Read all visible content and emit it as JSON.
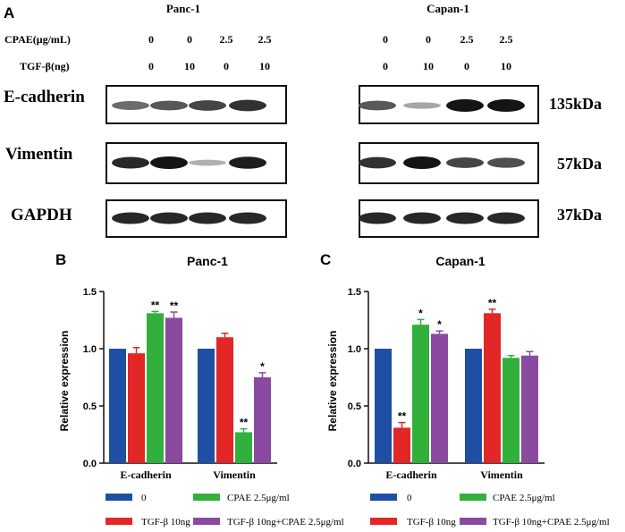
{
  "panels": {
    "A": "A",
    "B": "B",
    "C": "C"
  },
  "blot": {
    "treatment_rows": [
      {
        "label": "CPAE(μg/mL)",
        "panc": [
          "0",
          "0",
          "2.5",
          "2.5"
        ],
        "capan": [
          "0",
          "0",
          "2.5",
          "2.5"
        ]
      },
      {
        "label": "TGF-β(ng)",
        "panc": [
          "0",
          "10",
          "0",
          "10"
        ],
        "capan": [
          "0",
          "10",
          "0",
          "10"
        ]
      }
    ],
    "cell_lines": [
      "Panc-1",
      "Capan-1"
    ],
    "proteins": [
      {
        "name": "E-cadherin",
        "mw": "135kDa",
        "panc_intensity": [
          0.55,
          0.65,
          0.75,
          0.85
        ],
        "capan_intensity": [
          0.65,
          0.25,
          1.0,
          1.0
        ]
      },
      {
        "name": "Vimentin",
        "mw": "57kDa",
        "panc_intensity": [
          0.9,
          1.0,
          0.2,
          0.95
        ],
        "capan_intensity": [
          0.85,
          1.0,
          0.75,
          0.7
        ]
      },
      {
        "name": "GAPDH",
        "mw": "37kDa",
        "panc_intensity": [
          0.9,
          0.9,
          0.9,
          0.9
        ],
        "capan_intensity": [
          0.9,
          0.9,
          0.9,
          0.9
        ]
      }
    ]
  },
  "colors": {
    "s0": "#1f4fa3",
    "s1": "#e32626",
    "s2": "#32b03c",
    "s3": "#8a4aa0"
  },
  "chart_data": [
    {
      "type": "bar",
      "title": "Panc-1",
      "ylabel": "Relative expression",
      "categories": [
        "E-cadherin",
        "Vimentin"
      ],
      "ylim": [
        0,
        1.5
      ],
      "yticks": [
        "0.0",
        "0.5",
        "1.0",
        "1.5"
      ],
      "series": [
        {
          "name": "0",
          "values": [
            1.0,
            1.0
          ],
          "errors": [
            0,
            0
          ],
          "sig": [
            "",
            ""
          ]
        },
        {
          "name": "TGF-β 10ng",
          "values": [
            0.96,
            1.1
          ],
          "errors": [
            0.05,
            0.035
          ],
          "sig": [
            "",
            ""
          ]
        },
        {
          "name": "CPAE 2.5μg/ml",
          "values": [
            1.31,
            0.27
          ],
          "errors": [
            0.015,
            0.03
          ],
          "sig": [
            "**",
            "**"
          ]
        },
        {
          "name": "TGF-β 10ng+CPAE 2.5μg/ml",
          "values": [
            1.27,
            0.75
          ],
          "errors": [
            0.05,
            0.04
          ],
          "sig": [
            "**",
            "*"
          ]
        }
      ]
    },
    {
      "type": "bar",
      "title": "Capan-1",
      "ylabel": "Relative expression",
      "categories": [
        "E-cadherin",
        "Vimentin"
      ],
      "ylim": [
        0,
        1.5
      ],
      "yticks": [
        "0.0",
        "0.5",
        "1.0",
        "1.5"
      ],
      "series": [
        {
          "name": "0",
          "values": [
            1.0,
            1.0
          ],
          "errors": [
            0,
            0
          ],
          "sig": [
            "",
            ""
          ]
        },
        {
          "name": "TGF-β 10ng",
          "values": [
            0.31,
            1.31
          ],
          "errors": [
            0.045,
            0.035
          ],
          "sig": [
            "**",
            "**"
          ]
        },
        {
          "name": "CPAE 2.5μg/ml",
          "values": [
            1.21,
            0.92
          ],
          "errors": [
            0.045,
            0.02
          ],
          "sig": [
            "*",
            ""
          ]
        },
        {
          "name": "TGF-β 10ng+CPAE 2.5μg/ml",
          "values": [
            1.13,
            0.94
          ],
          "errors": [
            0.025,
            0.035
          ],
          "sig": [
            "*",
            ""
          ]
        }
      ]
    }
  ]
}
